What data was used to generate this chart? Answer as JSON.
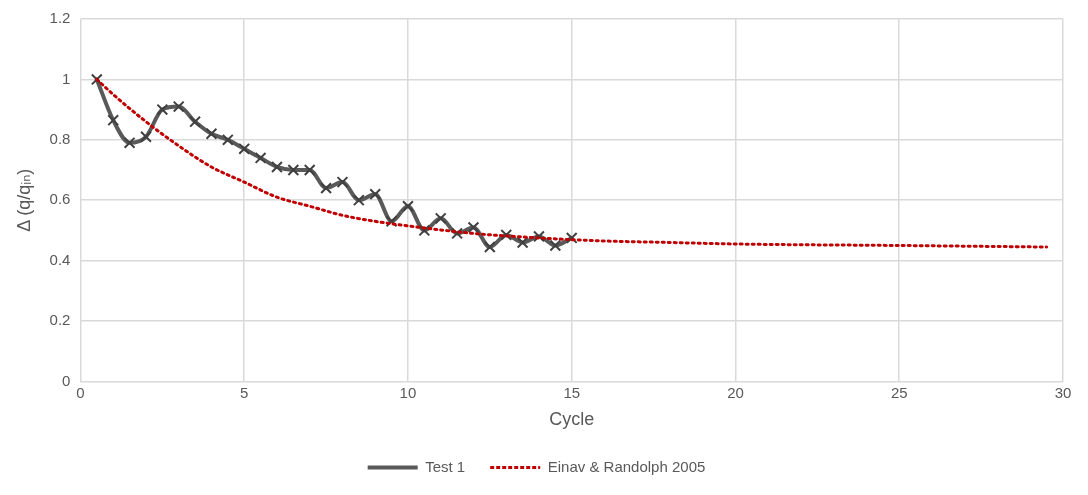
{
  "chart_data": {
    "type": "line",
    "xlabel": "Cycle",
    "ylabel": "Δ (q/qᵢₙ)",
    "xlim": [
      0,
      30
    ],
    "xticks": [
      0,
      5,
      10,
      15,
      20,
      25,
      30
    ],
    "ylim": [
      0,
      1.2
    ],
    "yticks": [
      0,
      0.2,
      0.4,
      0.6,
      0.8,
      1,
      1.2
    ],
    "grid": true,
    "legend": "bottom",
    "series": [
      {
        "name": "Test 1",
        "color": "#595959",
        "marker": "cross",
        "line_style": "solid",
        "x": [
          0.5,
          1,
          1.5,
          2,
          2.5,
          3,
          3.5,
          4,
          4.5,
          5,
          5.5,
          6,
          6.5,
          7,
          7.5,
          8,
          8.5,
          9,
          9.5,
          10,
          10.5,
          11,
          11.5,
          12,
          12.5,
          13,
          13.5,
          14,
          14.5,
          15
        ],
        "values": [
          1.0,
          0.865,
          0.79,
          0.81,
          0.9,
          0.91,
          0.86,
          0.82,
          0.8,
          0.77,
          0.74,
          0.71,
          0.7,
          0.7,
          0.64,
          0.66,
          0.6,
          0.62,
          0.53,
          0.58,
          0.5,
          0.54,
          0.49,
          0.51,
          0.445,
          0.485,
          0.46,
          0.48,
          0.45,
          0.475
        ]
      },
      {
        "name": "Einav & Randolph 2005",
        "color": "#c00000",
        "marker": "none",
        "line_style": "dotted",
        "x": [
          0.5,
          1,
          2,
          3,
          4,
          5,
          6,
          7,
          8,
          9,
          10,
          12,
          14,
          16,
          18,
          20,
          25,
          29.5
        ],
        "values": [
          1.0,
          0.95,
          0.86,
          0.78,
          0.71,
          0.66,
          0.61,
          0.58,
          0.55,
          0.53,
          0.515,
          0.49,
          0.475,
          0.465,
          0.46,
          0.455,
          0.45,
          0.445
        ]
      }
    ]
  }
}
